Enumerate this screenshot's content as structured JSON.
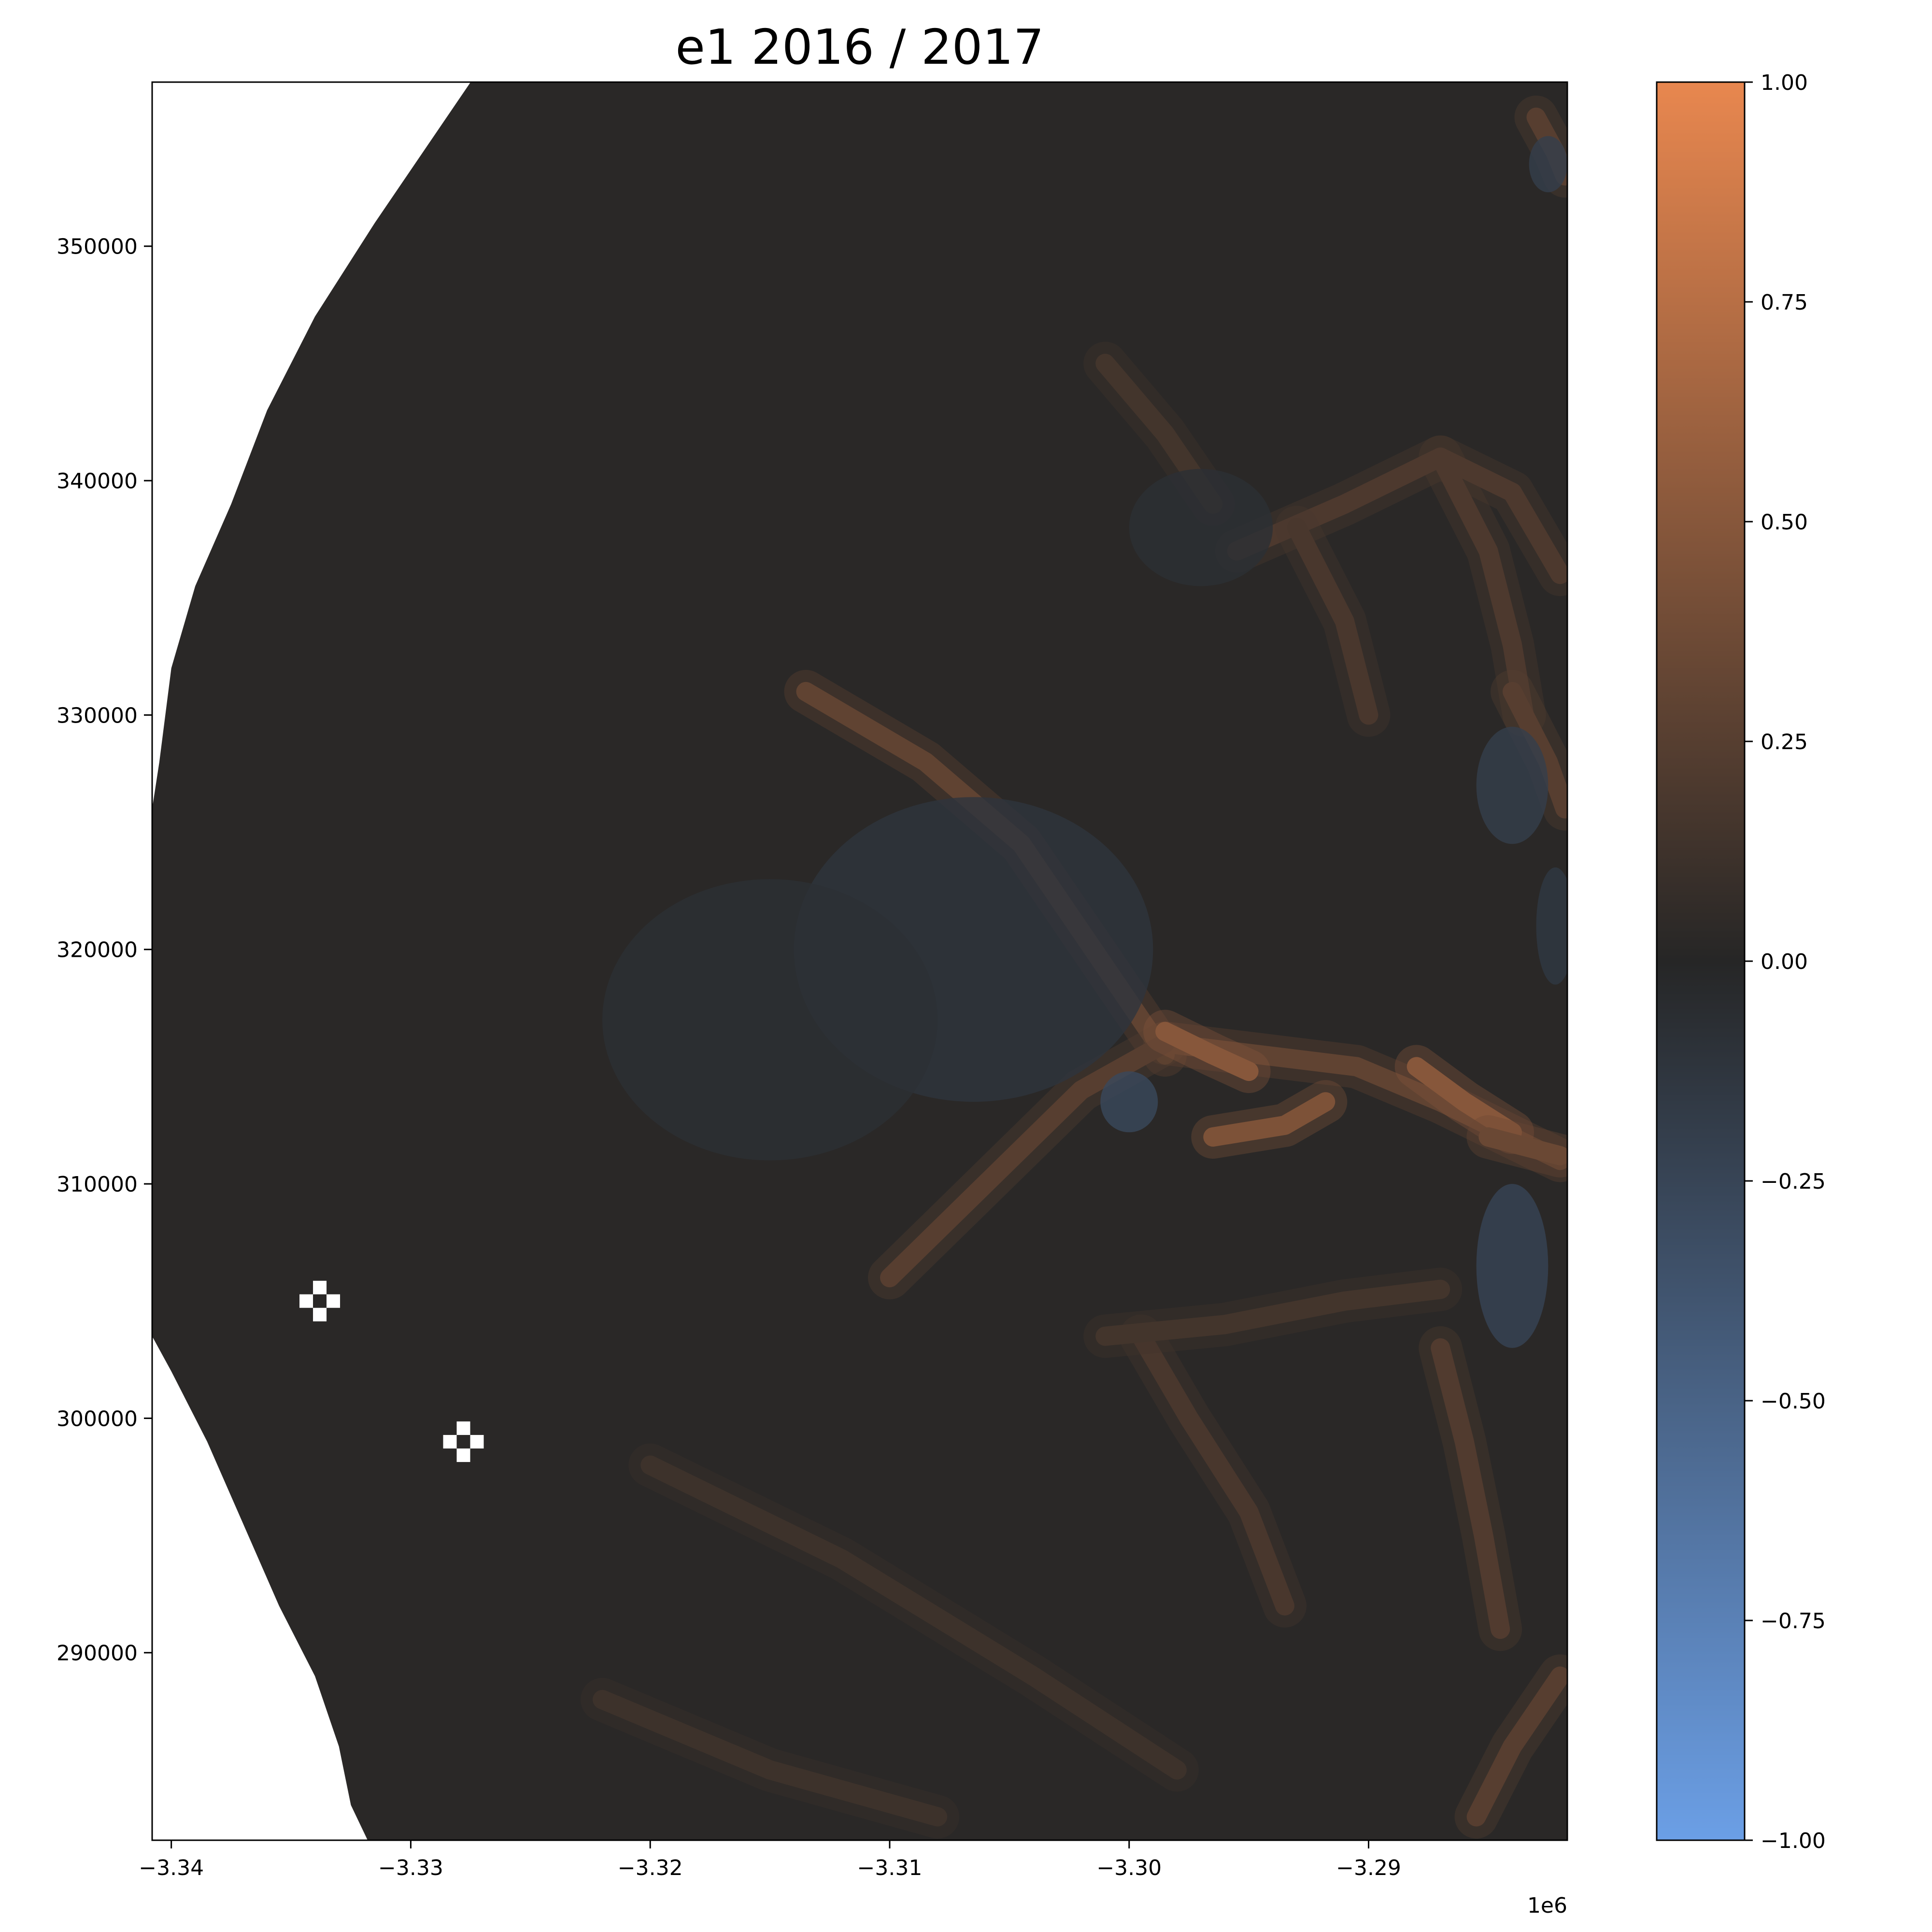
{
  "chart_data": {
    "type": "heatmap",
    "title": "e1 2016 / 2017",
    "xlabel": "",
    "ylabel": "",
    "x_offset_label": "1e6",
    "x_ticks": [
      {
        "value": -3.34,
        "label": "−3.34"
      },
      {
        "value": -3.33,
        "label": "−3.33"
      },
      {
        "value": -3.32,
        "label": "−3.32"
      },
      {
        "value": -3.31,
        "label": "−3.31"
      },
      {
        "value": -3.3,
        "label": "−3.30"
      },
      {
        "value": -3.29,
        "label": "−3.29"
      }
    ],
    "y_ticks": [
      {
        "value": 350000,
        "label": "350000"
      },
      {
        "value": 340000,
        "label": "340000"
      },
      {
        "value": 330000,
        "label": "330000"
      },
      {
        "value": 320000,
        "label": "320000"
      },
      {
        "value": 310000,
        "label": "310000"
      },
      {
        "value": 300000,
        "label": "300000"
      },
      {
        "value": 290000,
        "label": "290000"
      }
    ],
    "xlim": [
      -3.3408,
      -3.2817
    ],
    "ylim": [
      282000,
      357000
    ],
    "colorbar": {
      "min": -1.0,
      "max": 1.0,
      "ticks": [
        {
          "value": 1.0,
          "label": "1.00"
        },
        {
          "value": 0.75,
          "label": "0.75"
        },
        {
          "value": 0.5,
          "label": "0.50"
        },
        {
          "value": 0.25,
          "label": "0.25"
        },
        {
          "value": 0.0,
          "label": "0.00"
        },
        {
          "value": -0.25,
          "label": "−0.25"
        },
        {
          "value": -0.5,
          "label": "−0.50"
        },
        {
          "value": -0.75,
          "label": "−0.75"
        },
        {
          "value": -1.0,
          "label": "−1.00"
        }
      ],
      "colors": {
        "positive": "#e8874f",
        "zero": "#262626",
        "negative": "#6b9fe6"
      }
    },
    "grid": false,
    "background_field_value": 0.02,
    "features": [
      {
        "kind": "band",
        "value": 0.3,
        "points": [
          [
            -3.2985,
            315500
          ],
          [
            -3.3015,
            320000
          ],
          [
            -3.3045,
            324500
          ],
          [
            -3.3085,
            328000
          ],
          [
            -3.3135,
            331000
          ]
        ]
      },
      {
        "kind": "band",
        "value": 0.3,
        "points": [
          [
            -3.2985,
            316000
          ],
          [
            -3.2945,
            315500
          ],
          [
            -3.2905,
            315000
          ],
          [
            -3.287,
            313500
          ],
          [
            -3.284,
            312000
          ],
          [
            -3.282,
            311000
          ]
        ]
      },
      {
        "kind": "band",
        "value": 0.25,
        "points": [
          [
            -3.2985,
            316000
          ],
          [
            -3.302,
            314000
          ],
          [
            -3.306,
            310000
          ],
          [
            -3.31,
            306000
          ]
        ]
      },
      {
        "kind": "band",
        "value": 0.5,
        "points": [
          [
            -3.2985,
            316500
          ],
          [
            -3.2965,
            315500
          ],
          [
            -3.295,
            314800
          ]
        ]
      },
      {
        "kind": "band",
        "value": 0.45,
        "points": [
          [
            -3.2965,
            312000
          ],
          [
            -3.2935,
            312500
          ],
          [
            -3.2918,
            313500
          ]
        ]
      },
      {
        "kind": "band",
        "value": 0.5,
        "points": [
          [
            -3.288,
            315000
          ],
          [
            -3.286,
            313500
          ],
          [
            -3.284,
            312200
          ]
        ]
      },
      {
        "kind": "band",
        "value": 0.35,
        "points": [
          [
            -3.282,
            311200
          ],
          [
            -3.285,
            312000
          ]
        ]
      },
      {
        "kind": "band",
        "value": 0.2,
        "points": [
          [
            -3.2955,
            337000
          ],
          [
            -3.291,
            339000
          ],
          [
            -3.287,
            341000
          ],
          [
            -3.284,
            339500
          ],
          [
            -3.282,
            336000
          ]
        ]
      },
      {
        "kind": "band",
        "value": 0.2,
        "points": [
          [
            -3.287,
            341000
          ],
          [
            -3.285,
            337000
          ],
          [
            -3.284,
            333000
          ],
          [
            -3.2835,
            330000
          ]
        ]
      },
      {
        "kind": "band",
        "value": 0.18,
        "points": [
          [
            -3.293,
            338000
          ],
          [
            -3.291,
            334000
          ],
          [
            -3.29,
            330000
          ]
        ]
      },
      {
        "kind": "band",
        "value": 0.25,
        "points": [
          [
            -3.284,
            331000
          ],
          [
            -3.2825,
            328000
          ],
          [
            -3.2818,
            326000
          ]
        ]
      },
      {
        "kind": "band",
        "value": 0.15,
        "points": [
          [
            -3.301,
            345000
          ],
          [
            -3.2985,
            342000
          ],
          [
            -3.2965,
            339000
          ]
        ]
      },
      {
        "kind": "band",
        "value": 0.18,
        "points": [
          [
            -3.2995,
            303500
          ],
          [
            -3.2975,
            300000
          ],
          [
            -3.295,
            296000
          ],
          [
            -3.2935,
            292000
          ]
        ]
      },
      {
        "kind": "band",
        "value": 0.22,
        "points": [
          [
            -3.287,
            303000
          ],
          [
            -3.286,
            299000
          ],
          [
            -3.2852,
            295000
          ],
          [
            -3.2845,
            291000
          ]
        ]
      },
      {
        "kind": "band",
        "value": 0.25,
        "points": [
          [
            -3.282,
            289000
          ],
          [
            -3.284,
            286000
          ],
          [
            -3.2855,
            283000
          ]
        ]
      },
      {
        "kind": "band",
        "value": 0.15,
        "points": [
          [
            -3.301,
            303500
          ],
          [
            -3.296,
            304000
          ],
          [
            -3.291,
            305000
          ],
          [
            -3.287,
            305500
          ]
        ]
      },
      {
        "kind": "band",
        "value": 0.25,
        "points": [
          [
            -3.283,
            355500
          ],
          [
            -3.2822,
            354000
          ],
          [
            -3.2818,
            353000
          ]
        ]
      },
      {
        "kind": "band",
        "value": 0.12,
        "points": [
          [
            -3.32,
            298000
          ],
          [
            -3.312,
            294000
          ],
          [
            -3.304,
            289000
          ],
          [
            -3.298,
            285000
          ]
        ]
      },
      {
        "kind": "band",
        "value": 0.12,
        "points": [
          [
            -3.322,
            288000
          ],
          [
            -3.315,
            285000
          ],
          [
            -3.308,
            283000
          ]
        ]
      },
      {
        "kind": "blob",
        "value": -0.12,
        "x": -3.3065,
        "y": 320000,
        "rx": 0.0075,
        "ry": 6500
      },
      {
        "kind": "blob",
        "value": -0.08,
        "x": -3.315,
        "y": 317000,
        "rx": 0.007,
        "ry": 6000
      },
      {
        "kind": "blob",
        "value": -0.08,
        "x": -3.297,
        "y": 338000,
        "rx": 0.003,
        "ry": 2500
      },
      {
        "kind": "blob",
        "value": -0.28,
        "x": -3.3,
        "y": 313500,
        "rx": 0.0012,
        "ry": 1300
      },
      {
        "kind": "blob",
        "value": -0.25,
        "x": -3.284,
        "y": 306500,
        "rx": 0.0015,
        "ry": 3500
      },
      {
        "kind": "blob",
        "value": -0.2,
        "x": -3.284,
        "y": 327000,
        "rx": 0.0015,
        "ry": 2500
      },
      {
        "kind": "blob",
        "value": -0.2,
        "x": -3.2825,
        "y": 353500,
        "rx": 0.0008,
        "ry": 1200
      },
      {
        "kind": "blob",
        "value": -0.15,
        "x": -3.2822,
        "y": 321000,
        "rx": 0.0008,
        "ry": 2500
      }
    ],
    "missing_cells": [
      {
        "x": -3.3338,
        "y": 305000
      },
      {
        "x": -3.3278,
        "y": 299000
      }
    ]
  }
}
